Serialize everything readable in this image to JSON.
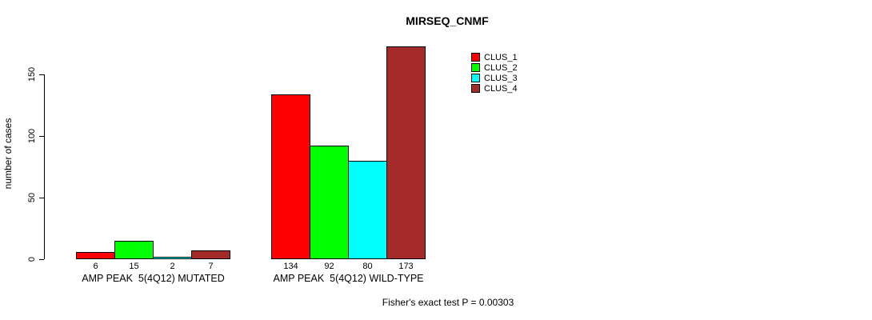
{
  "title": "MIRSEQ_CNMF",
  "footer": "Fisher's exact test P = 0.00303",
  "chart_data": {
    "type": "bar",
    "title": "MIRSEQ_CNMF",
    "xlabel": "",
    "ylabel": "number of cases",
    "categories": [
      "AMP PEAK  5(4Q12) MUTATED",
      "AMP PEAK  5(4Q12) WILD-TYPE"
    ],
    "series": [
      {
        "name": "CLUS_1",
        "color": "#FF0000",
        "values": [
          6,
          134
        ]
      },
      {
        "name": "CLUS_2",
        "color": "#00FF00",
        "values": [
          15,
          92
        ]
      },
      {
        "name": "CLUS_3",
        "color": "#00FFFF",
        "values": [
          2,
          80
        ]
      },
      {
        "name": "CLUS_4",
        "color": "#A52A2A",
        "values": [
          7,
          173
        ]
      }
    ],
    "bar_value_labels": [
      [
        "6",
        "15",
        "2",
        "7"
      ],
      [
        "134",
        "92",
        "80",
        "173"
      ]
    ],
    "yticks": [
      0,
      50,
      100,
      150
    ],
    "ylim": [
      0,
      175
    ],
    "grid": false,
    "legend_position": "top-right",
    "legend_entries": [
      "CLUS_1",
      "CLUS_2",
      "CLUS_3",
      "CLUS_4"
    ],
    "annotation": "Fisher's exact test P = 0.00303"
  }
}
